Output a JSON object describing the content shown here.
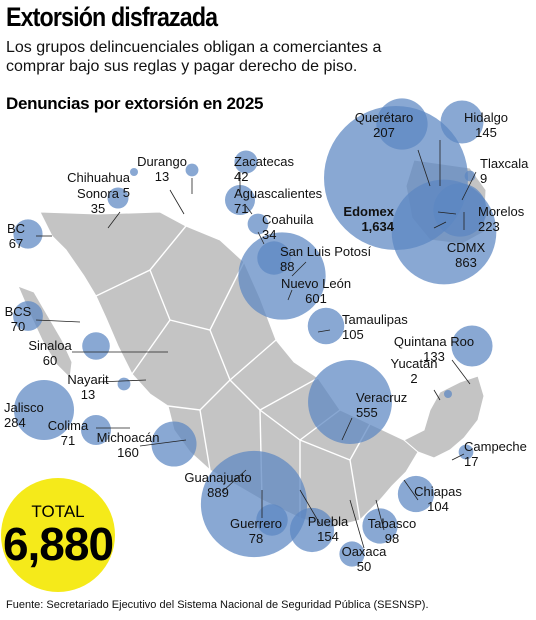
{
  "header": {
    "title": "Extorsión disfrazada",
    "subtitle": "Los grupos delincuenciales obligan a comerciantes a comprar bajo sus reglas y pagar derecho de piso."
  },
  "total": {
    "label": "TOTAL",
    "value": "6,880"
  },
  "footer": {
    "source": "Fuente: Secretariado Ejecutivo del Sistema Nacional de Seguridad Pública (SESNSP)."
  },
  "colors": {
    "bubble": "#5b86c2",
    "map": "#c4c4c4",
    "total_circle": "#f5ea1a"
  },
  "chart_data": {
    "type": "bubble-map",
    "title": "Denuncias por extorsión en 2025",
    "states": [
      {
        "name": "Edomex",
        "value": 1634
      },
      {
        "name": "Guanajuato",
        "value": 889
      },
      {
        "name": "CDMX",
        "value": 863
      },
      {
        "name": "Nuevo León",
        "value": 601
      },
      {
        "name": "Veracruz",
        "value": 555
      },
      {
        "name": "Jalisco",
        "value": 284
      },
      {
        "name": "Morelos",
        "value": 223
      },
      {
        "name": "Querétaro",
        "value": 207
      },
      {
        "name": "Michoacán",
        "value": 160
      },
      {
        "name": "Puebla",
        "value": 154
      },
      {
        "name": "Hidalgo",
        "value": 145
      },
      {
        "name": "Quintana Roo",
        "value": 133
      },
      {
        "name": "Tamaulipas",
        "value": 105
      },
      {
        "name": "Chiapas",
        "value": 104
      },
      {
        "name": "Tabasco",
        "value": 98
      },
      {
        "name": "San Luis Potosí",
        "value": 88
      },
      {
        "name": "Guerrero",
        "value": 78
      },
      {
        "name": "Aguascalientes",
        "value": 71
      },
      {
        "name": "Colima",
        "value": 71
      },
      {
        "name": "BCS",
        "value": 70
      },
      {
        "name": "BC",
        "value": 67
      },
      {
        "name": "Sinaloa",
        "value": 60
      },
      {
        "name": "Oaxaca",
        "value": 50
      },
      {
        "name": "Zacatecas",
        "value": 42
      },
      {
        "name": "Sonora",
        "value": 35
      },
      {
        "name": "Coahuila",
        "value": 34
      },
      {
        "name": "Campeche",
        "value": 17
      },
      {
        "name": "Durango",
        "value": 13
      },
      {
        "name": "Nayarit",
        "value": 13
      },
      {
        "name": "Tlaxcala",
        "value": 9
      },
      {
        "name": "Chihuahua",
        "value": 5
      },
      {
        "name": "Yucatán",
        "value": 2
      }
    ]
  }
}
